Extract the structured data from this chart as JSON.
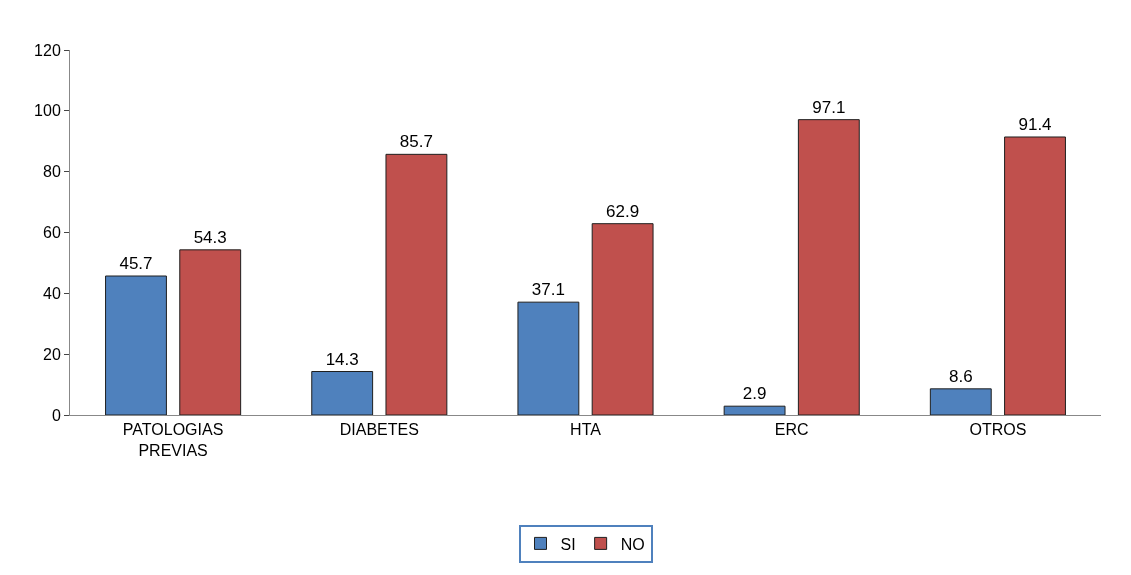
{
  "chart_data": {
    "type": "bar",
    "categories": [
      "PATOLOGIAS\nPREVIAS",
      "DIABETES",
      "HTA",
      "ERC",
      "OTROS"
    ],
    "series": [
      {
        "name": "SI",
        "color": "#4f81bd",
        "values": [
          45.7,
          14.3,
          37.1,
          2.9,
          8.6
        ]
      },
      {
        "name": "NO",
        "color": "#c0504d",
        "values": [
          54.3,
          85.7,
          62.9,
          97.1,
          91.4
        ]
      }
    ],
    "ylim": [
      0,
      120
    ],
    "yticks": [
      0,
      20,
      40,
      60,
      80,
      100,
      120
    ],
    "grid": false,
    "legend": "bottom",
    "data_labels": true
  }
}
